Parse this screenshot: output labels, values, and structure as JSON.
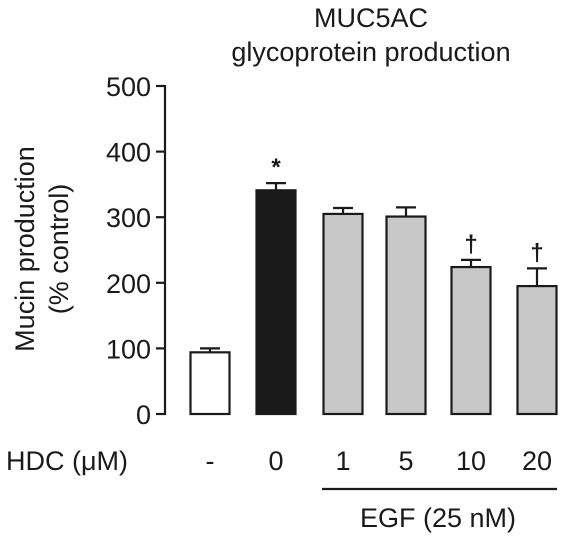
{
  "chart_data": {
    "type": "bar",
    "title": [
      "MUC5AC",
      "glycoprotein production"
    ],
    "ylabel": [
      "Mucin production",
      "(% control)"
    ],
    "ylim": [
      0,
      500
    ],
    "yticks": [
      "0",
      "100",
      "200",
      "300",
      "400",
      "500"
    ],
    "x_axis_label": "HDC (μM)",
    "categories": [
      "-",
      "0",
      "1",
      "5",
      "10",
      "20"
    ],
    "values": [
      94,
      341,
      305,
      301,
      224,
      195
    ],
    "errors": [
      6,
      11,
      9,
      14,
      11,
      27
    ],
    "bar_colors": [
      "#ffffff",
      "#1a1a1a",
      "#c8c8c8",
      "#c8c8c8",
      "#c8c8c8",
      "#c8c8c8"
    ],
    "significance": [
      "",
      "*",
      "",
      "",
      "†",
      "†"
    ],
    "bracket_label": "EGF (25 nM)"
  }
}
